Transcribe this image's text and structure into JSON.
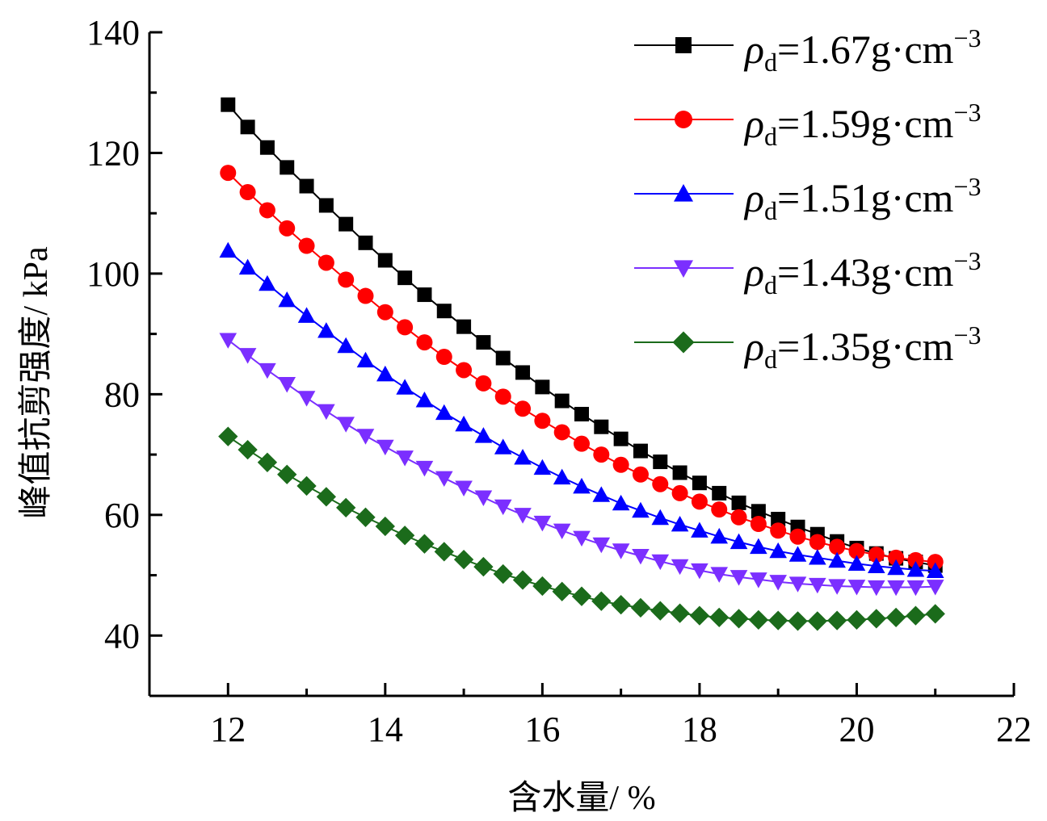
{
  "chart_data": {
    "type": "line",
    "xlabel": "含水量/ %",
    "ylabel": "峰值抗剪强度/ kPa",
    "xlim": [
      11,
      22
    ],
    "ylim": [
      30,
      140
    ],
    "xticks": [
      12,
      14,
      16,
      18,
      20,
      22
    ],
    "yticks": [
      40,
      60,
      80,
      100,
      120,
      140
    ],
    "grid": false,
    "legend_position": "top-right",
    "x": [
      12.0,
      12.25,
      12.5,
      12.75,
      13.0,
      13.25,
      13.5,
      13.75,
      14.0,
      14.25,
      14.5,
      14.75,
      15.0,
      15.25,
      15.5,
      15.75,
      16.0,
      16.25,
      16.5,
      16.75,
      17.0,
      17.25,
      17.5,
      17.75,
      18.0,
      18.25,
      18.5,
      18.75,
      19.0,
      19.25,
      19.5,
      19.75,
      20.0,
      20.25,
      20.5,
      20.75,
      21.0
    ],
    "series": [
      {
        "name": "ρd=1.67g·cm−3",
        "legend_main": "ρ",
        "legend_sub": "d",
        "legend_value": "=1.67g·cm",
        "legend_sup": "−3",
        "color": "#000000",
        "marker": "square",
        "values": [
          128.0,
          124.3,
          120.9,
          117.6,
          114.5,
          111.3,
          108.2,
          105.1,
          102.2,
          99.3,
          96.5,
          93.8,
          91.2,
          88.6,
          86.0,
          83.6,
          81.2,
          78.9,
          76.7,
          74.6,
          72.6,
          70.6,
          68.8,
          67.0,
          65.3,
          63.6,
          62.0,
          60.6,
          59.3,
          58.0,
          56.8,
          55.6,
          54.5,
          53.6,
          52.8,
          52.2,
          51.6
        ]
      },
      {
        "name": "ρd=1.59g·cm−3",
        "legend_main": "ρ",
        "legend_sub": "d",
        "legend_value": "=1.59g·cm",
        "legend_sup": "−3",
        "color": "#ff0000",
        "marker": "circle",
        "values": [
          116.7,
          113.5,
          110.5,
          107.5,
          104.6,
          101.8,
          99.0,
          96.3,
          93.6,
          91.1,
          88.6,
          86.2,
          84.0,
          81.8,
          79.6,
          77.6,
          75.6,
          73.7,
          71.8,
          70.0,
          68.3,
          66.7,
          65.1,
          63.6,
          62.2,
          60.9,
          59.6,
          58.5,
          57.4,
          56.4,
          55.5,
          54.7,
          54.0,
          53.4,
          52.9,
          52.5,
          52.2
        ]
      },
      {
        "name": "ρd=1.51g·cm−3",
        "legend_main": "ρ",
        "legend_sub": "d",
        "legend_value": "=1.51g·cm",
        "legend_sup": "−3",
        "color": "#0000ff",
        "marker": "triangle-up",
        "values": [
          103.8,
          101.0,
          98.3,
          95.6,
          93.0,
          90.5,
          88.0,
          85.6,
          83.3,
          81.1,
          79.0,
          76.9,
          75.0,
          73.1,
          71.2,
          69.5,
          67.8,
          66.2,
          64.7,
          63.3,
          61.9,
          60.7,
          59.5,
          58.4,
          57.4,
          56.4,
          55.5,
          54.7,
          54.0,
          53.4,
          52.9,
          52.4,
          51.9,
          51.5,
          51.2,
          50.9,
          50.7
        ]
      },
      {
        "name": "ρd=1.43g·cm−3",
        "legend_main": "ρ",
        "legend_sub": "d",
        "legend_value": "=1.43g·cm",
        "legend_sup": "−3",
        "color": "#7b2fff",
        "marker": "triangle-down",
        "values": [
          89.0,
          86.5,
          84.0,
          81.7,
          79.4,
          77.2,
          75.1,
          73.1,
          71.3,
          69.5,
          67.8,
          66.1,
          64.5,
          62.9,
          61.4,
          60.0,
          58.7,
          57.4,
          56.2,
          55.1,
          54.1,
          53.2,
          52.3,
          51.5,
          50.8,
          50.2,
          49.7,
          49.3,
          48.9,
          48.6,
          48.4,
          48.2,
          48.1,
          48.0,
          48.0,
          48.0,
          48.1
        ]
      },
      {
        "name": "ρd=1.35g·cm−3",
        "legend_main": "ρ",
        "legend_sub": "d",
        "legend_value": "=1.35g·cm",
        "legend_sup": "−3",
        "color": "#1b6b1b",
        "marker": "diamond",
        "values": [
          73.0,
          70.8,
          68.7,
          66.7,
          64.8,
          63.0,
          61.2,
          59.6,
          58.1,
          56.6,
          55.2,
          53.9,
          52.6,
          51.4,
          50.2,
          49.2,
          48.2,
          47.3,
          46.5,
          45.7,
          45.1,
          44.6,
          44.1,
          43.7,
          43.3,
          43.0,
          42.8,
          42.6,
          42.5,
          42.4,
          42.4,
          42.5,
          42.6,
          42.8,
          43.0,
          43.3,
          43.6
        ]
      }
    ]
  }
}
